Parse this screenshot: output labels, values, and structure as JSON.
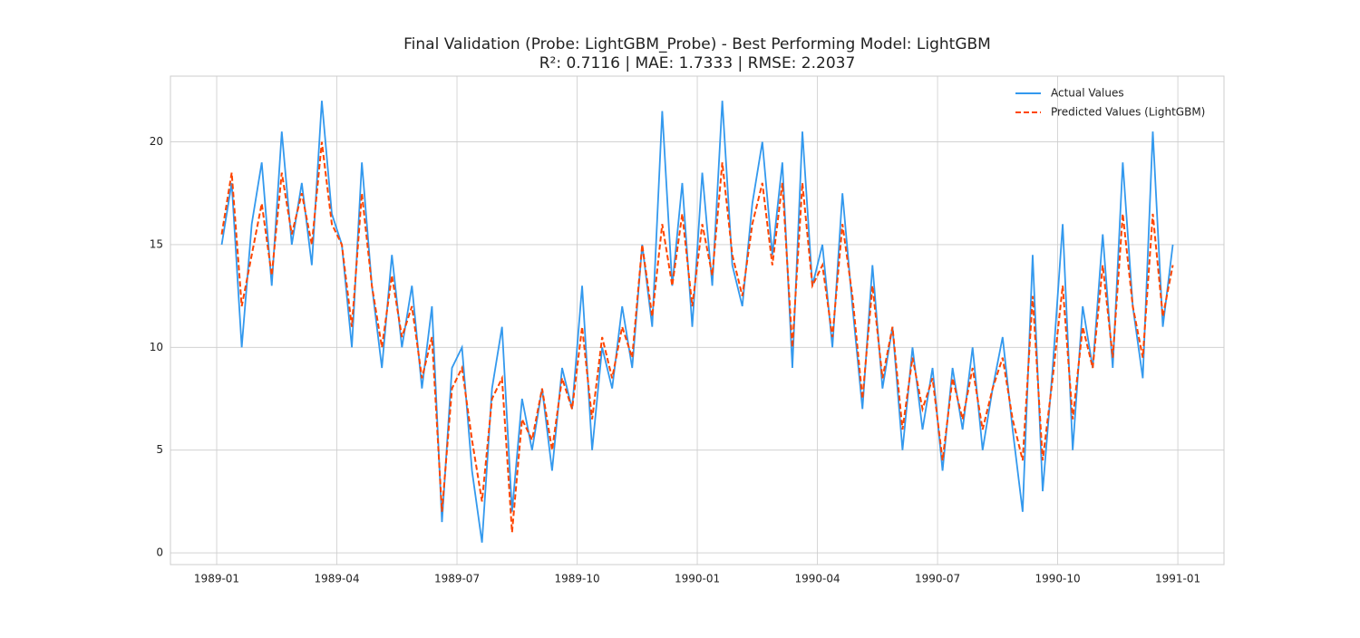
{
  "chart_data": {
    "type": "line",
    "title": "Final Validation (Probe: LightGBM_Probe) - Best Performing Model: LightGBM",
    "subtitle": "R²: 0.7116  |  MAE: 1.7333  |  RMSE: 2.2037",
    "x": [
      "1989-01",
      "1989-01",
      "1989-01",
      "1989-01",
      "1989-02",
      "1989-02",
      "1989-02",
      "1989-02",
      "1989-03",
      "1989-03",
      "1989-03",
      "1989-03",
      "1989-04",
      "1989-04",
      "1989-04",
      "1989-04",
      "1989-05",
      "1989-05",
      "1989-05",
      "1989-05",
      "1989-06",
      "1989-06",
      "1989-06",
      "1989-06",
      "1989-07",
      "1989-07",
      "1989-07",
      "1989-07",
      "1989-08",
      "1989-08",
      "1989-08",
      "1989-08",
      "1989-09",
      "1989-09",
      "1989-09",
      "1989-09",
      "1989-10",
      "1989-10",
      "1989-10",
      "1989-10",
      "1989-11",
      "1989-11",
      "1989-11",
      "1989-11",
      "1989-12",
      "1989-12",
      "1989-12",
      "1989-12",
      "1990-01",
      "1990-01",
      "1990-01",
      "1990-01",
      "1990-02",
      "1990-02",
      "1990-02",
      "1990-02",
      "1990-03",
      "1990-03",
      "1990-03",
      "1990-03",
      "1990-04",
      "1990-04",
      "1990-04",
      "1990-04",
      "1990-05",
      "1990-05",
      "1990-05",
      "1990-05",
      "1990-06",
      "1990-06",
      "1990-06",
      "1990-06",
      "1990-07",
      "1990-07",
      "1990-07",
      "1990-07",
      "1990-08",
      "1990-08",
      "1990-08",
      "1990-08",
      "1990-09",
      "1990-09",
      "1990-09",
      "1990-09",
      "1990-10",
      "1990-10",
      "1990-10",
      "1990-10",
      "1990-11",
      "1990-11",
      "1990-11",
      "1990-11",
      "1990-12",
      "1990-12",
      "1990-12",
      "1990-12"
    ],
    "series": [
      {
        "name": "Actual Values",
        "color": "#3399ee",
        "dash": false,
        "values": [
          15,
          18,
          10,
          16,
          19,
          13,
          20.5,
          15,
          18,
          14,
          22,
          16.5,
          15,
          10,
          19,
          13,
          9,
          14.5,
          10,
          13,
          8,
          12,
          1.5,
          9,
          10,
          4,
          0.5,
          8,
          11,
          2,
          7.5,
          5,
          8,
          4,
          9,
          7,
          13,
          5,
          10,
          8,
          12,
          9,
          15,
          11,
          21.5,
          13,
          18,
          11,
          18.5,
          13,
          22,
          14,
          12,
          17,
          20,
          14.5,
          19,
          9,
          20.5,
          13,
          15,
          10,
          17.5,
          12,
          7,
          14,
          8,
          11,
          5,
          10,
          6,
          9,
          4,
          9,
          6,
          10,
          5,
          8,
          10.5,
          6,
          2,
          14.5,
          3,
          9,
          16,
          5,
          12,
          9,
          15.5,
          9,
          19,
          12,
          8.5,
          20.5,
          11,
          15
        ]
      },
      {
        "name": "Predicted Values (LightGBM)",
        "color": "#ff4500",
        "dash": true,
        "values": [
          15.5,
          18.5,
          12,
          14.5,
          17,
          13.5,
          18.5,
          15.5,
          17.5,
          15,
          20,
          16,
          15,
          11,
          17.5,
          13,
          10,
          13.5,
          10.5,
          12,
          8.5,
          10.5,
          2,
          8,
          9,
          5.5,
          2.5,
          7.5,
          8.5,
          1,
          6.5,
          5.5,
          8,
          5,
          8.5,
          7,
          11,
          6.5,
          10.5,
          8.5,
          11,
          9.5,
          15,
          11.5,
          16,
          13,
          16.5,
          12,
          16,
          13.5,
          19,
          14.5,
          12.5,
          16,
          18,
          14,
          18,
          10,
          18,
          13,
          14,
          10.5,
          16,
          12.5,
          7.5,
          13,
          8.5,
          11,
          6,
          9.5,
          7,
          8.5,
          4.5,
          8.5,
          6.5,
          9,
          6,
          8,
          9.5,
          6.5,
          4.5,
          12.5,
          4.5,
          8.5,
          13,
          6.5,
          11,
          9,
          14,
          9.5,
          16.5,
          12,
          9.5,
          16.5,
          11.5,
          14
        ]
      }
    ],
    "xticks": [
      "1989-01",
      "1989-04",
      "1989-07",
      "1989-10",
      "1990-01",
      "1990-04",
      "1990-07",
      "1990-10",
      "1991-01"
    ],
    "ylim": [
      -0.57,
      23.2
    ],
    "yticks": [
      0,
      5,
      10,
      15,
      20
    ],
    "grid": true,
    "legend": "upper right"
  }
}
